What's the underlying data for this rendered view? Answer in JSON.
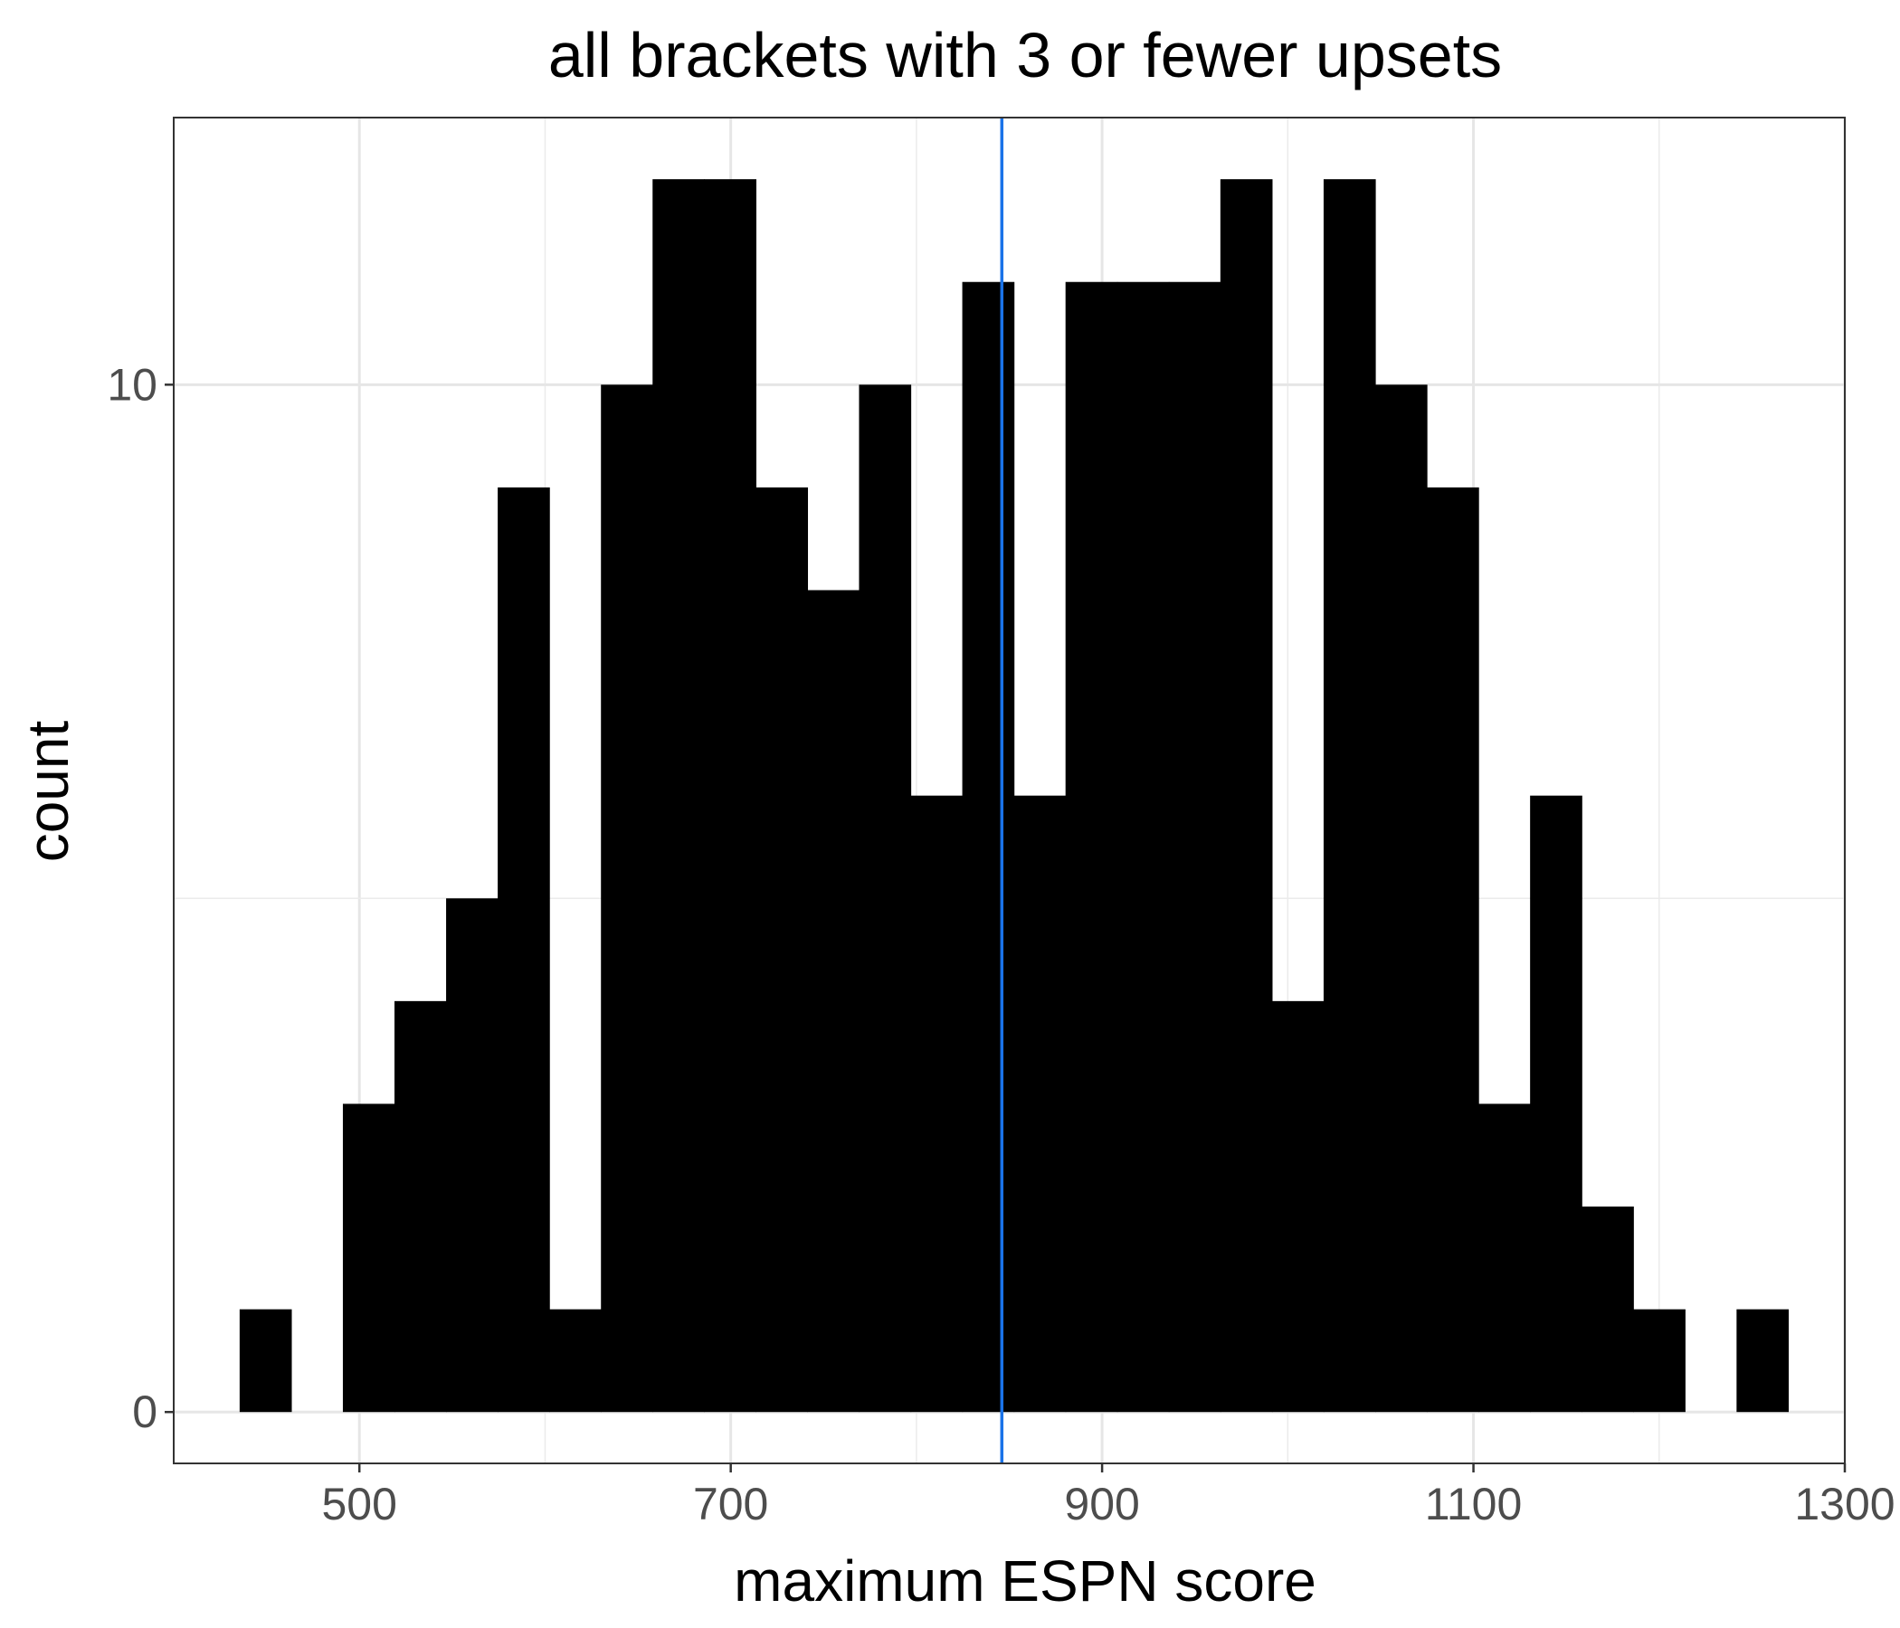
{
  "chart_data": {
    "type": "bar",
    "title": "all brackets with 3 or fewer upsets",
    "xlabel": "maximum ESPN score",
    "ylabel": "count",
    "xlim": [
      400,
      1300
    ],
    "ylim": [
      -0.5,
      12.6
    ],
    "x_ticks": [
      500,
      700,
      900,
      1100,
      1300
    ],
    "y_ticks": [
      0,
      10
    ],
    "bin_width": 27.8,
    "bins": [
      {
        "x0": 435.5,
        "count": 1
      },
      {
        "x0": 463.3,
        "count": 0
      },
      {
        "x0": 491.1,
        "count": 3
      },
      {
        "x0": 518.9,
        "count": 4
      },
      {
        "x0": 546.7,
        "count": 5
      },
      {
        "x0": 574.5,
        "count": 9
      },
      {
        "x0": 602.3,
        "count": 1
      },
      {
        "x0": 630.1,
        "count": 10
      },
      {
        "x0": 657.9,
        "count": 12
      },
      {
        "x0": 685.7,
        "count": 12
      },
      {
        "x0": 713.5,
        "count": 9
      },
      {
        "x0": 741.3,
        "count": 8
      },
      {
        "x0": 769.1,
        "count": 10
      },
      {
        "x0": 796.9,
        "count": 6
      },
      {
        "x0": 824.7,
        "count": 11
      },
      {
        "x0": 852.5,
        "count": 6
      },
      {
        "x0": 880.3,
        "count": 11
      },
      {
        "x0": 908.1,
        "count": 11
      },
      {
        "x0": 935.9,
        "count": 11
      },
      {
        "x0": 963.7,
        "count": 12
      },
      {
        "x0": 991.5,
        "count": 4
      },
      {
        "x0": 1019.3,
        "count": 12
      },
      {
        "x0": 1047.1,
        "count": 10
      },
      {
        "x0": 1074.9,
        "count": 9
      },
      {
        "x0": 1102.7,
        "count": 3
      },
      {
        "x0": 1130.5,
        "count": 6
      },
      {
        "x0": 1158.3,
        "count": 2
      },
      {
        "x0": 1186.1,
        "count": 1
      },
      {
        "x0": 1213.9,
        "count": 0
      },
      {
        "x0": 1241.7,
        "count": 1
      }
    ],
    "reference_line": {
      "x": 846,
      "color": "#1a73e8"
    },
    "bar_color": "#000000",
    "grid": true,
    "legend": "none"
  }
}
